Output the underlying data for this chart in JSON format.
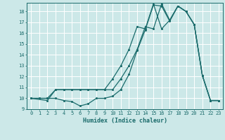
{
  "xlabel": "Humidex (Indice chaleur)",
  "bg_color": "#cce8e8",
  "grid_color": "#ffffff",
  "line_color": "#1a6b6b",
  "xlim": [
    -0.5,
    23.5
  ],
  "ylim": [
    9.0,
    18.8
  ],
  "yticks": [
    9,
    10,
    11,
    12,
    13,
    14,
    15,
    16,
    17,
    18
  ],
  "xticks": [
    0,
    1,
    2,
    3,
    4,
    5,
    6,
    7,
    8,
    9,
    10,
    11,
    12,
    13,
    14,
    15,
    16,
    17,
    18,
    19,
    20,
    21,
    22,
    23
  ],
  "line1_x": [
    0,
    1,
    2,
    3,
    4,
    5,
    6,
    7,
    8,
    9,
    10,
    11,
    12,
    13,
    14,
    15,
    16,
    17,
    18,
    19,
    20,
    21,
    22,
    23
  ],
  "line1_y": [
    10,
    10,
    10,
    10,
    9.8,
    9.7,
    9.3,
    9.5,
    10,
    10,
    10.2,
    10.8,
    12.2,
    14.4,
    16.3,
    18.6,
    18.5,
    17.1,
    18.5,
    18.0,
    16.8,
    12.1,
    9.8,
    9.8
  ],
  "line2_x": [
    0,
    1,
    2,
    3,
    4,
    5,
    6,
    7,
    8,
    9,
    10,
    11,
    12,
    13,
    14,
    15,
    16,
    17,
    18,
    19,
    20,
    21,
    22,
    23
  ],
  "line2_y": [
    10,
    10,
    10,
    10.8,
    10.8,
    10.8,
    10.8,
    10.8,
    10.8,
    10.8,
    11.8,
    13.0,
    14.5,
    16.6,
    16.4,
    18.7,
    16.4,
    17.2,
    18.5,
    18.0,
    16.8,
    12.1,
    9.8,
    9.8
  ],
  "line3_x": [
    0,
    2,
    3,
    4,
    5,
    6,
    7,
    8,
    9,
    10,
    11,
    12,
    13,
    14,
    15,
    16,
    17,
    18,
    19,
    20,
    21,
    22,
    23
  ],
  "line3_y": [
    10,
    9.8,
    10.8,
    10.8,
    10.8,
    10.8,
    10.8,
    10.8,
    10.8,
    10.8,
    11.8,
    13.0,
    14.5,
    16.6,
    16.4,
    18.7,
    17.2,
    18.5,
    18.0,
    16.8,
    12.1,
    9.8,
    9.8
  ]
}
